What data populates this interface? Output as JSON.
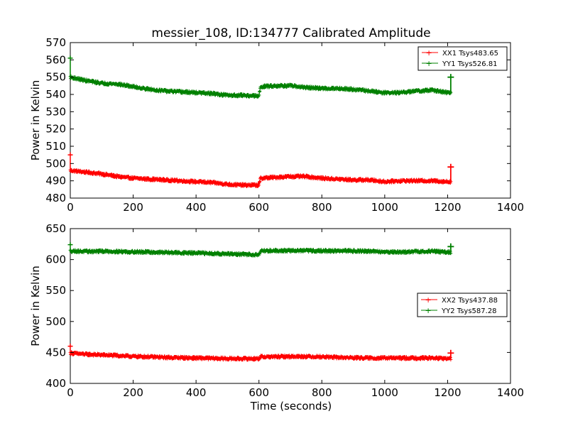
{
  "chart_data": [
    {
      "type": "line",
      "title": "messier_108, ID:134777 Calibrated Amplitude",
      "xlabel": "",
      "ylabel": "Power in Kelvin",
      "xlim": [
        0,
        1400
      ],
      "ylim": [
        480,
        570
      ],
      "xticks": [
        "0",
        "200",
        "400",
        "600",
        "800",
        "1000",
        "1200",
        "1400"
      ],
      "yticks": [
        "480",
        "490",
        "500",
        "510",
        "520",
        "530",
        "540",
        "550",
        "560",
        "570"
      ],
      "legend_position": "top-right",
      "grid": false,
      "series": [
        {
          "name": "XX1 Tsys483.65",
          "color": "#ff0000",
          "x": [
            0,
            50,
            100,
            150,
            200,
            250,
            300,
            350,
            400,
            450,
            500,
            550,
            600,
            605,
            650,
            700,
            750,
            800,
            850,
            900,
            950,
            1000,
            1050,
            1100,
            1150,
            1200,
            1210
          ],
          "y": [
            496,
            495,
            494,
            492.5,
            491.5,
            491,
            490.5,
            490,
            489.5,
            489,
            488,
            487.5,
            487.5,
            491.5,
            492,
            492.5,
            492.5,
            491.5,
            491,
            490.5,
            490.5,
            489.5,
            490,
            490,
            490,
            489.5,
            489.5
          ],
          "spike_start": 505,
          "spike_end": 498
        },
        {
          "name": "YY1 Tsys526.81",
          "color": "#008000",
          "x": [
            0,
            50,
            100,
            150,
            200,
            250,
            300,
            350,
            400,
            450,
            500,
            550,
            600,
            605,
            650,
            700,
            750,
            800,
            850,
            900,
            950,
            1000,
            1050,
            1100,
            1150,
            1200,
            1210
          ],
          "y": [
            550,
            548,
            546.5,
            546,
            544.5,
            543,
            542,
            541.5,
            541,
            540.5,
            539.5,
            539.5,
            539,
            544.5,
            545,
            545,
            544,
            543.5,
            543.5,
            543,
            542,
            541,
            541,
            542,
            542.5,
            541,
            541
          ],
          "spike_start": 561,
          "spike_end": 550
        }
      ]
    },
    {
      "type": "line",
      "title": "",
      "xlabel": "Time (seconds)",
      "ylabel": "Power in Kelvin",
      "xlim": [
        0,
        1400
      ],
      "ylim": [
        400,
        650
      ],
      "xticks": [
        "0",
        "200",
        "400",
        "600",
        "800",
        "1000",
        "1200",
        "1400"
      ],
      "yticks": [
        "400",
        "450",
        "500",
        "550",
        "600",
        "650"
      ],
      "legend_position": "center-right",
      "grid": false,
      "series": [
        {
          "name": "XX2 Tsys437.88",
          "color": "#ff0000",
          "x": [
            0,
            50,
            100,
            150,
            200,
            250,
            300,
            350,
            400,
            450,
            500,
            550,
            600,
            605,
            650,
            700,
            750,
            800,
            850,
            900,
            950,
            1000,
            1050,
            1100,
            1150,
            1200,
            1210
          ],
          "y": [
            449,
            447,
            446,
            445,
            443.5,
            443,
            442,
            441.5,
            441,
            440.5,
            440,
            440,
            440,
            443,
            443,
            443.5,
            443.5,
            443,
            442,
            441.5,
            441,
            441,
            441,
            441,
            441,
            440,
            440
          ],
          "spike_start": 460,
          "spike_end": 449
        },
        {
          "name": "YY2 Tsys587.28",
          "color": "#008000",
          "x": [
            0,
            50,
            100,
            150,
            200,
            250,
            300,
            350,
            400,
            450,
            500,
            550,
            600,
            605,
            650,
            700,
            750,
            800,
            850,
            900,
            950,
            1000,
            1050,
            1100,
            1150,
            1200,
            1210
          ],
          "y": [
            614,
            613,
            613.5,
            613,
            612.5,
            612,
            611.5,
            611,
            610.5,
            610,
            609,
            608.5,
            608,
            614,
            614.5,
            614.5,
            614.5,
            614,
            614,
            614,
            613.5,
            612.5,
            612,
            613,
            613.5,
            612,
            612
          ],
          "spike_start": 624,
          "spike_end": 621
        }
      ]
    }
  ]
}
